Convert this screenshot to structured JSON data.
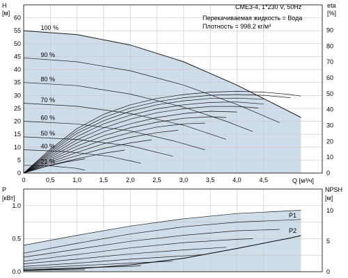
{
  "chart_data": [
    {
      "type": "line",
      "title": "CME3-4, 1*230 V, 50Hz",
      "info": [
        "Перекачиваемая жидкость = Вода",
        "Плотность = 998.2 кг/м³"
      ],
      "ylabel_left": [
        "H",
        "[м]"
      ],
      "ylabel_right": [
        "eta",
        "[%]"
      ],
      "xlabel": "Q [м³/ч]",
      "xlim": [
        0,
        5.6
      ],
      "ylim": [
        0,
        65
      ],
      "y2lim": [
        0,
        106
      ],
      "x_ticks": [
        0,
        0.5,
        1.0,
        1.5,
        2.0,
        2.5,
        3.0,
        3.5,
        4.0,
        4.5
      ],
      "x_tick_labels": [
        "0",
        "0,5",
        "1,0",
        "1,5",
        "2,0",
        "2,5",
        "3,0",
        "3,5",
        "4,0",
        "4,5"
      ],
      "y_ticks": [
        0,
        5,
        10,
        15,
        20,
        25,
        30,
        35,
        40,
        45,
        50,
        55,
        60
      ],
      "y2_ticks": [
        0,
        10,
        20,
        30,
        40,
        50,
        60,
        70,
        80,
        90
      ],
      "grid": true,
      "speed_curves": [
        {
          "label": "100 %",
          "max": true,
          "points": [
            [
              0,
              55
            ],
            [
              1.0,
              53.5
            ],
            [
              2.0,
              49.5
            ],
            [
              3.0,
              43
            ],
            [
              4.0,
              34
            ],
            [
              5.2,
              21.5
            ]
          ]
        },
        {
          "label": "90 %",
          "points": [
            [
              0,
              44.5
            ],
            [
              1.0,
              43
            ],
            [
              2.0,
              39.5
            ],
            [
              3.0,
              34
            ],
            [
              4.0,
              26.5
            ],
            [
              4.8,
              19.5
            ]
          ]
        },
        {
          "label": "80 %",
          "points": [
            [
              0,
              35
            ],
            [
              1.0,
              33.8
            ],
            [
              2.0,
              30.5
            ],
            [
              3.0,
              25.5
            ],
            [
              3.8,
              20
            ],
            [
              4.3,
              16
            ]
          ]
        },
        {
          "label": "70 %",
          "points": [
            [
              0,
              27
            ],
            [
              1.0,
              25.8
            ],
            [
              2.0,
              23
            ],
            [
              3.0,
              18.5
            ],
            [
              3.8,
              13
            ]
          ]
        },
        {
          "label": "60 %",
          "points": [
            [
              0,
              20
            ],
            [
              1.0,
              19
            ],
            [
              2.0,
              16.3
            ],
            [
              2.8,
              12.5
            ],
            [
              3.4,
              9
            ]
          ]
        },
        {
          "label": "50 %",
          "points": [
            [
              0,
              14
            ],
            [
              1.0,
              13
            ],
            [
              2.0,
              10.5
            ],
            [
              2.8,
              6.5
            ]
          ]
        },
        {
          "label": "40 %",
          "points": [
            [
              0,
              9
            ],
            [
              0.8,
              8.3
            ],
            [
              1.6,
              6.5
            ],
            [
              2.2,
              3.8
            ]
          ]
        },
        {
          "label": "21 %",
          "points": [
            [
              0,
              3
            ],
            [
              0.5,
              2.8
            ],
            [
              1.0,
              1.8
            ],
            [
              1.15,
              1.1
            ]
          ]
        }
      ],
      "efficiency_curves": [
        {
          "points": [
            [
              0,
              0
            ],
            [
              0.5,
              15
            ],
            [
              1.0,
              28
            ],
            [
              1.5,
              37
            ],
            [
              2.0,
              43
            ],
            [
              2.5,
              47
            ],
            [
              3.0,
              49.5
            ],
            [
              3.5,
              51
            ],
            [
              4.0,
              51.5
            ],
            [
              4.5,
              51
            ],
            [
              5.0,
              49.5
            ],
            [
              5.2,
              48.5
            ]
          ]
        },
        {
          "points": [
            [
              0,
              0
            ],
            [
              0.5,
              14
            ],
            [
              1.0,
              26.5
            ],
            [
              1.5,
              35
            ],
            [
              2.0,
              41
            ],
            [
              2.5,
              45
            ],
            [
              3.0,
              47.5
            ],
            [
              3.5,
              49
            ],
            [
              4.0,
              49.5
            ],
            [
              4.5,
              49
            ],
            [
              5.0,
              47.5
            ]
          ]
        },
        {
          "points": [
            [
              0,
              0
            ],
            [
              0.5,
              13
            ],
            [
              1.0,
              25
            ],
            [
              1.5,
              33
            ],
            [
              2.0,
              39
            ],
            [
              2.5,
              43
            ],
            [
              3.0,
              45.5
            ],
            [
              3.5,
              47
            ],
            [
              4.0,
              47.2
            ],
            [
              4.5,
              46.5
            ]
          ]
        },
        {
          "points": [
            [
              0,
              0
            ],
            [
              0.5,
              12
            ],
            [
              1.0,
              23
            ],
            [
              1.5,
              31
            ],
            [
              2.0,
              36.5
            ],
            [
              2.5,
              40.5
            ],
            [
              3.0,
              43
            ],
            [
              3.5,
              44.5
            ],
            [
              4.0,
              44.8
            ],
            [
              4.5,
              43.5
            ]
          ]
        },
        {
          "points": [
            [
              0,
              0
            ],
            [
              0.5,
              11
            ],
            [
              1.0,
              21
            ],
            [
              1.5,
              28.5
            ],
            [
              2.0,
              34
            ],
            [
              2.5,
              38
            ],
            [
              3.0,
              40.5
            ],
            [
              3.5,
              42
            ],
            [
              4.0,
              42
            ],
            [
              4.4,
              41
            ]
          ]
        },
        {
          "points": [
            [
              0,
              0
            ],
            [
              0.5,
              10
            ],
            [
              1.0,
              19
            ],
            [
              1.5,
              26
            ],
            [
              2.0,
              31
            ],
            [
              2.5,
              35
            ],
            [
              3.0,
              37.5
            ],
            [
              3.5,
              39
            ],
            [
              4.0,
              38.5
            ]
          ]
        },
        {
          "points": [
            [
              0,
              0
            ],
            [
              0.5,
              9
            ],
            [
              1.0,
              17
            ],
            [
              1.5,
              23.5
            ],
            [
              2.0,
              28.5
            ],
            [
              2.5,
              32
            ],
            [
              3.0,
              34.5
            ],
            [
              3.5,
              35.5
            ],
            [
              3.8,
              35
            ]
          ]
        },
        {
          "points": [
            [
              0,
              0
            ],
            [
              0.5,
              8
            ],
            [
              1.0,
              15
            ],
            [
              1.5,
              21
            ],
            [
              2.0,
              25.5
            ],
            [
              2.5,
              29
            ],
            [
              3.0,
              31
            ],
            [
              3.4,
              31.5
            ]
          ]
        },
        {
          "points": [
            [
              0,
              0
            ],
            [
              0.5,
              7
            ],
            [
              1.0,
              13
            ],
            [
              1.5,
              18.5
            ],
            [
              2.0,
              22.5
            ],
            [
              2.5,
              25.5
            ],
            [
              2.9,
              27
            ]
          ]
        },
        {
          "points": [
            [
              0,
              0
            ],
            [
              0.5,
              6
            ],
            [
              1.0,
              11
            ],
            [
              1.5,
              15.5
            ],
            [
              2.0,
              19
            ],
            [
              2.4,
              21
            ]
          ]
        },
        {
          "points": [
            [
              0,
              0
            ],
            [
              0.5,
              5
            ],
            [
              1.0,
              9
            ],
            [
              1.5,
              12.5
            ],
            [
              1.9,
              14.5
            ]
          ]
        },
        {
          "points": [
            [
              0,
              0
            ],
            [
              0.4,
              4
            ],
            [
              0.8,
              7
            ],
            [
              1.15,
              9
            ]
          ]
        }
      ]
    },
    {
      "type": "line",
      "ylabel_left": [
        "P",
        "[кВт]"
      ],
      "ylabel_right": [
        "NPSH",
        "[м]"
      ],
      "xlim": [
        0,
        5.6
      ],
      "ylim": [
        0,
        1.25
      ],
      "y2lim": [
        0,
        13.5
      ],
      "y_ticks": [
        0,
        0.5,
        1.0
      ],
      "y_tick_labels": [
        "0.0",
        "0.5",
        "1.0"
      ],
      "y2_ticks": [
        0,
        5,
        10
      ],
      "grid": true,
      "series_labels": [
        "P1",
        "P2"
      ],
      "power_curves": [
        {
          "name": "P1",
          "points": [
            [
              0,
              0.4
            ],
            [
              1.0,
              0.55
            ],
            [
              2.0,
              0.69
            ],
            [
              3.0,
              0.8
            ],
            [
              4.0,
              0.88
            ],
            [
              5.2,
              0.93
            ]
          ]
        },
        {
          "name": "P2",
          "points": [
            [
              0,
              0.28
            ],
            [
              1.0,
              0.43
            ],
            [
              2.0,
              0.57
            ],
            [
              3.0,
              0.68
            ],
            [
              4.0,
              0.75
            ],
            [
              5.2,
              0.79
            ]
          ]
        },
        {
          "points": [
            [
              0,
              0.22
            ],
            [
              1.0,
              0.34
            ],
            [
              2.0,
              0.46
            ],
            [
              3.0,
              0.55
            ],
            [
              4.0,
              0.62
            ],
            [
              4.8,
              0.64
            ]
          ]
        },
        {
          "points": [
            [
              0,
              0.16
            ],
            [
              1.0,
              0.26
            ],
            [
              2.0,
              0.36
            ],
            [
              3.0,
              0.44
            ],
            [
              4.0,
              0.49
            ],
            [
              4.3,
              0.5
            ]
          ]
        },
        {
          "points": [
            [
              0,
              0.12
            ],
            [
              1.0,
              0.19
            ],
            [
              2.0,
              0.27
            ],
            [
              3.0,
              0.33
            ],
            [
              3.8,
              0.37
            ]
          ]
        },
        {
          "points": [
            [
              0,
              0.08
            ],
            [
              1.0,
              0.13
            ],
            [
              2.0,
              0.19
            ],
            [
              3.0,
              0.24
            ],
            [
              3.4,
              0.26
            ]
          ]
        },
        {
          "points": [
            [
              0,
              0.05
            ],
            [
              1.0,
              0.09
            ],
            [
              2.0,
              0.13
            ],
            [
              2.8,
              0.16
            ]
          ]
        },
        {
          "points": [
            [
              0,
              0.03
            ],
            [
              1.0,
              0.06
            ],
            [
              2.0,
              0.08
            ],
            [
              2.2,
              0.09
            ]
          ]
        },
        {
          "points": [
            [
              0,
              0.015
            ],
            [
              0.6,
              0.025
            ],
            [
              1.15,
              0.03
            ]
          ]
        }
      ],
      "npsh_curve": {
        "points": [
          [
            0,
            0.3
          ],
          [
            1.0,
            0.5
          ],
          [
            2.0,
            1.1
          ],
          [
            3.0,
            2.2
          ],
          [
            4.0,
            3.8
          ],
          [
            5.0,
            5.5
          ],
          [
            5.2,
            5.9
          ]
        ]
      }
    }
  ]
}
